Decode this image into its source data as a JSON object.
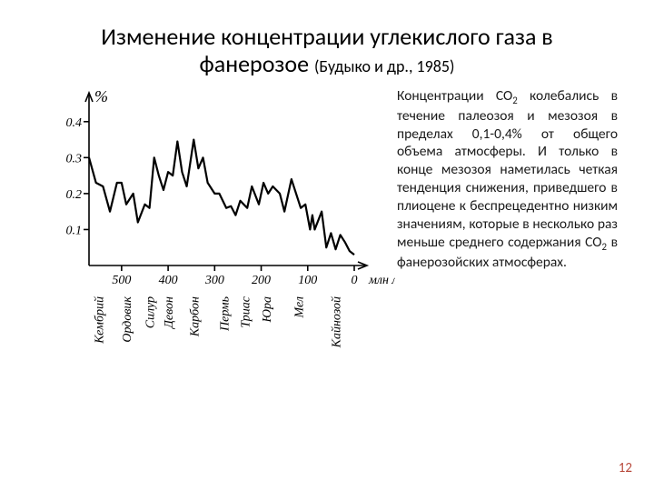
{
  "title_main": "Изменение концентрации углекислого газа в фанерозое",
  "title_sub": "(Будыко и др., 1985)",
  "paragraph": {
    "t1": "Концентрации CO",
    "t2": " колебались в течение палеозоя и мезозоя в пределах 0,1-0,4% от общего объема атмосферы. И только в конце мезозоя наметилась четкая тенденция снижения, приведшего в плиоцене к беспрецедентно низким значениям, которые в несколько раз меньше среднего содержания CO",
    "t3": " в фанерозойских атмосферах."
  },
  "page_number": "12",
  "chart": {
    "type": "line",
    "y_label_symbol": "%",
    "y_ticks": [
      "0.1",
      "0.2",
      "0.3",
      "0.4"
    ],
    "ylim": [
      0,
      0.45
    ],
    "x_ticks": [
      "500",
      "400",
      "300",
      "200",
      "100",
      "0"
    ],
    "x_unit_label": "млн лет",
    "xlim": [
      570,
      0
    ],
    "period_labels": [
      "Кембрий",
      "Ордовик",
      "Силур",
      "Девон",
      "Карбон",
      "Пермь",
      "Триас",
      "Юра",
      "Мел",
      "Кайнозой"
    ],
    "period_x": [
      540,
      480,
      430,
      390,
      335,
      270,
      225,
      180,
      110,
      30
    ],
    "line_color": "#000000",
    "axis_color": "#000000",
    "text_color": "#000000",
    "background_color": "#ffffff",
    "line_width": 2.2,
    "axis_width": 1.6,
    "tick_len": 6,
    "font_family_chart": "serif",
    "y_tick_fontsize": 14,
    "y_tick_fontstyle": "italic",
    "x_tick_fontsize": 14,
    "x_tick_fontstyle": "italic",
    "period_fontsize": 14,
    "period_fontstyle": "italic",
    "y_symbol_fontsize": 18,
    "y_symbol_fontstyle": "italic",
    "x_unit_fontsize": 14,
    "x_unit_fontstyle": "italic",
    "series": [
      {
        "x": 570,
        "y": 0.3
      },
      {
        "x": 555,
        "y": 0.23
      },
      {
        "x": 540,
        "y": 0.22
      },
      {
        "x": 525,
        "y": 0.15
      },
      {
        "x": 510,
        "y": 0.23
      },
      {
        "x": 500,
        "y": 0.23
      },
      {
        "x": 490,
        "y": 0.17
      },
      {
        "x": 475,
        "y": 0.2
      },
      {
        "x": 465,
        "y": 0.12
      },
      {
        "x": 450,
        "y": 0.17
      },
      {
        "x": 440,
        "y": 0.16
      },
      {
        "x": 430,
        "y": 0.3
      },
      {
        "x": 420,
        "y": 0.25
      },
      {
        "x": 410,
        "y": 0.21
      },
      {
        "x": 400,
        "y": 0.26
      },
      {
        "x": 390,
        "y": 0.25
      },
      {
        "x": 380,
        "y": 0.345
      },
      {
        "x": 370,
        "y": 0.26
      },
      {
        "x": 360,
        "y": 0.22
      },
      {
        "x": 345,
        "y": 0.35
      },
      {
        "x": 335,
        "y": 0.27
      },
      {
        "x": 325,
        "y": 0.3
      },
      {
        "x": 315,
        "y": 0.23
      },
      {
        "x": 300,
        "y": 0.2
      },
      {
        "x": 290,
        "y": 0.2
      },
      {
        "x": 275,
        "y": 0.16
      },
      {
        "x": 265,
        "y": 0.165
      },
      {
        "x": 255,
        "y": 0.14
      },
      {
        "x": 245,
        "y": 0.18
      },
      {
        "x": 230,
        "y": 0.16
      },
      {
        "x": 220,
        "y": 0.22
      },
      {
        "x": 205,
        "y": 0.17
      },
      {
        "x": 195,
        "y": 0.23
      },
      {
        "x": 185,
        "y": 0.2
      },
      {
        "x": 175,
        "y": 0.22
      },
      {
        "x": 160,
        "y": 0.2
      },
      {
        "x": 150,
        "y": 0.15
      },
      {
        "x": 135,
        "y": 0.24
      },
      {
        "x": 125,
        "y": 0.2
      },
      {
        "x": 115,
        "y": 0.16
      },
      {
        "x": 105,
        "y": 0.17
      },
      {
        "x": 95,
        "y": 0.1
      },
      {
        "x": 90,
        "y": 0.14
      },
      {
        "x": 85,
        "y": 0.1
      },
      {
        "x": 70,
        "y": 0.15
      },
      {
        "x": 60,
        "y": 0.05
      },
      {
        "x": 50,
        "y": 0.09
      },
      {
        "x": 40,
        "y": 0.045
      },
      {
        "x": 30,
        "y": 0.085
      },
      {
        "x": 20,
        "y": 0.065
      },
      {
        "x": 10,
        "y": 0.04
      },
      {
        "x": 0,
        "y": 0.03
      }
    ]
  }
}
